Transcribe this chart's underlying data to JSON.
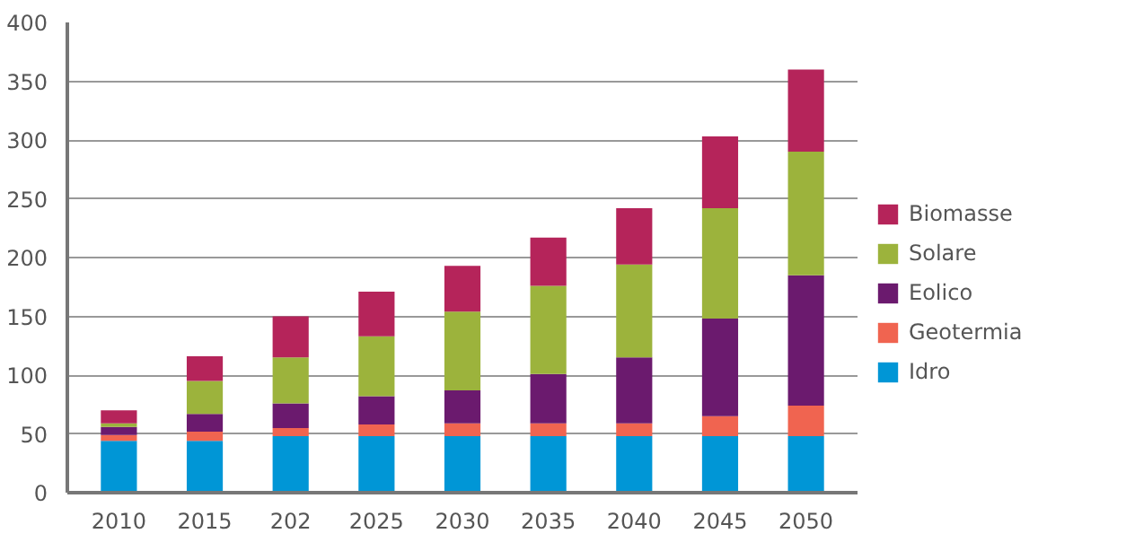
{
  "chart_data": {
    "type": "bar",
    "stacked": true,
    "categories": [
      "2010",
      "2015",
      "202",
      "2025",
      "2030",
      "2035",
      "2040",
      "2045",
      "2050"
    ],
    "series": [
      {
        "name": "Idro",
        "color": "#0096d6",
        "values": [
          44,
          44,
          48,
          48,
          48,
          48,
          48,
          48,
          48
        ]
      },
      {
        "name": "Geotermia",
        "color": "#f06450",
        "values": [
          5,
          8,
          7,
          10,
          11,
          11,
          11,
          17,
          26
        ]
      },
      {
        "name": "Eolico",
        "color": "#6b1a6e",
        "values": [
          7,
          15,
          21,
          24,
          28,
          42,
          56,
          83,
          111
        ]
      },
      {
        "name": "Solare",
        "color": "#9cb33c",
        "values": [
          3,
          28,
          39,
          51,
          67,
          75,
          79,
          94,
          105
        ]
      },
      {
        "name": "Biomasse",
        "color": "#b5245a",
        "values": [
          11,
          21,
          35,
          38,
          39,
          41,
          48,
          61,
          70
        ]
      }
    ],
    "ylim": [
      0,
      400
    ],
    "yticks": [
      0,
      50,
      100,
      150,
      200,
      250,
      300,
      350,
      400
    ],
    "grid": "y",
    "legend": "right"
  }
}
